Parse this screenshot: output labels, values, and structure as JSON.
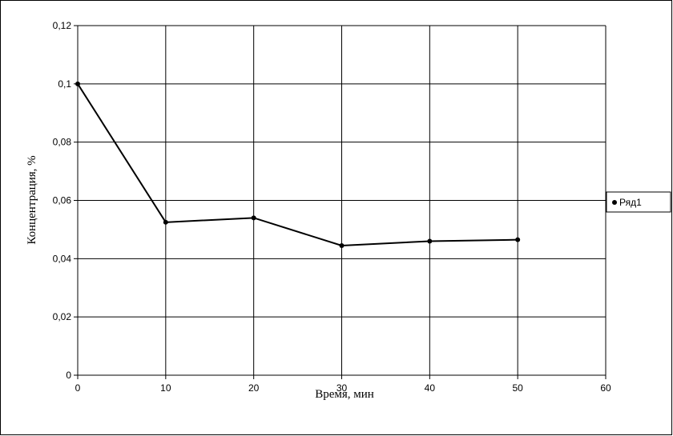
{
  "chart_data": {
    "type": "line",
    "title": "",
    "xlabel": "Время, мин",
    "ylabel": "Концентрация, %",
    "xlim": [
      0,
      60
    ],
    "ylim": [
      0,
      0.12
    ],
    "x_ticks": [
      0,
      10,
      20,
      30,
      40,
      50,
      60
    ],
    "x_tick_labels": [
      "0",
      "10",
      "20",
      "30",
      "40",
      "50",
      "60"
    ],
    "y_ticks": [
      0,
      0.02,
      0.04,
      0.06,
      0.08,
      0.1,
      0.12
    ],
    "y_tick_labels": [
      "0",
      "0,02",
      "0,04",
      "0,06",
      "0,08",
      "0,1",
      "0,12"
    ],
    "grid": true,
    "legend_position": "right",
    "series": [
      {
        "name": "Ряд1",
        "color": "#000000",
        "x": [
          0,
          10,
          20,
          30,
          40,
          50
        ],
        "y": [
          0.1,
          0.0525,
          0.054,
          0.0445,
          0.046,
          0.0465
        ]
      }
    ]
  }
}
